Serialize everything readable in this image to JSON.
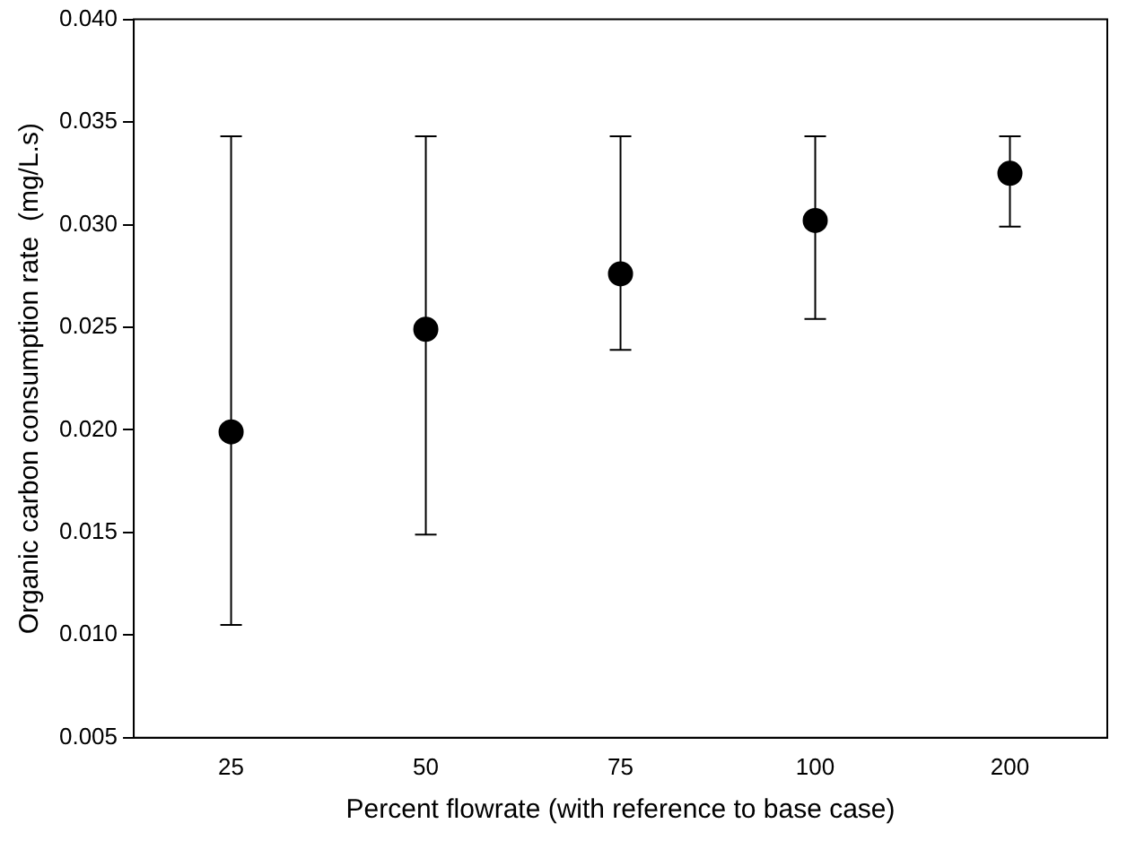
{
  "chart_data": {
    "type": "scatter",
    "xlabel": "Percent flowrate (with reference to base case)",
    "ylabel": "Organic carbon consumption rate  (mg/L.s)",
    "categories": [
      "25",
      "50",
      "75",
      "100",
      "200"
    ],
    "values": [
      0.0199,
      0.0249,
      0.0276,
      0.0302,
      0.0325
    ],
    "errors": [
      [
        0.0105,
        0.0343
      ],
      [
        0.0149,
        0.0343
      ],
      [
        0.0239,
        0.0343
      ],
      [
        0.0254,
        0.0343
      ],
      [
        0.0299,
        0.0343
      ]
    ],
    "color": "#000000",
    "marker": "circle",
    "grid": false,
    "legend": false,
    "ylim": [
      0.005,
      0.04
    ],
    "yticks": [
      {
        "value": 0.005,
        "label": "0.005"
      },
      {
        "value": 0.01,
        "label": "0.010"
      },
      {
        "value": 0.015,
        "label": "0.015"
      },
      {
        "value": 0.02,
        "label": "0.020"
      },
      {
        "value": 0.025,
        "label": "0.025"
      },
      {
        "value": 0.03,
        "label": "0.030"
      },
      {
        "value": 0.035,
        "label": "0.035"
      },
      {
        "value": 0.04,
        "label": "0.040"
      }
    ]
  }
}
